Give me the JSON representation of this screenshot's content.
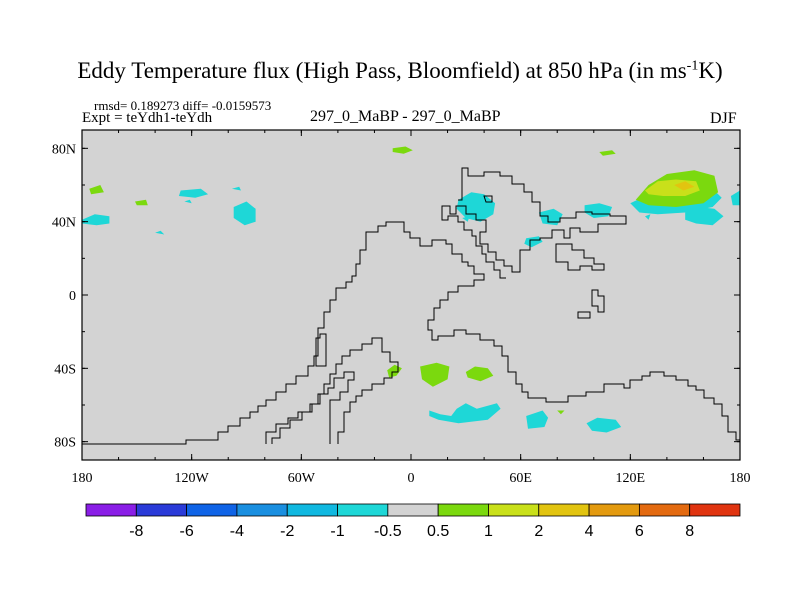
{
  "title": {
    "main": "Eddy Temperature flux (High Pass, Bloomfield) at 850 hPa (in ms",
    "sup": "-1",
    "end": "K)"
  },
  "stats": "rmsd= 0.189273 diff= -0.0159573",
  "expt": "Expt = teYdh1-teYdh",
  "experiment_name": "297_0_MaBP - 297_0_MaBP",
  "season": "DJF",
  "colors": {
    "background_band": "#d3d3d3",
    "coast": "#000000"
  },
  "chart_data": {
    "type": "heatmap",
    "title": "Eddy Temperature flux (High Pass, Bloomfield) at 850 hPa (in ms-1K)",
    "x_range": [
      -180,
      180
    ],
    "y_range": [
      -90,
      90
    ],
    "x_ticks": [
      {
        "value": -180,
        "label": "180"
      },
      {
        "value": -120,
        "label": "120W"
      },
      {
        "value": -60,
        "label": "60W"
      },
      {
        "value": 0,
        "label": "0"
      },
      {
        "value": 60,
        "label": "60E"
      },
      {
        "value": 120,
        "label": "120E"
      },
      {
        "value": 180,
        "label": "180"
      }
    ],
    "y_ticks": [
      {
        "value": 80,
        "label": "80N"
      },
      {
        "value": 40,
        "label": "40N"
      },
      {
        "value": 0,
        "label": "0"
      },
      {
        "value": -40,
        "label": "40S"
      },
      {
        "value": -80,
        "label": "80S"
      }
    ],
    "colorbar": {
      "labels": [
        "-8",
        "-6",
        "-4",
        "-2",
        "-1",
        "-0.5",
        "0.5",
        "1",
        "2",
        "4",
        "6",
        "8"
      ],
      "colors": [
        "#8a1ee6",
        "#2a3bd8",
        "#0f63e6",
        "#1a8fe0",
        "#10b8e0",
        "#1ed7d7",
        "#d3d3d3",
        "#7bd90e",
        "#c9e01a",
        "#e2c410",
        "#e39a0f",
        "#e36a10",
        "#e03410"
      ]
    },
    "features": [
      {
        "level": "-1",
        "color": "#1ed7d7",
        "points": [
          [
            -180,
            41
          ],
          [
            -173,
            44
          ],
          [
            -165,
            43
          ],
          [
            -165,
            39
          ],
          [
            -172,
            38
          ],
          [
            -180,
            39
          ]
        ]
      },
      {
        "level": "-1",
        "color": "#1ed7d7",
        "points": [
          [
            -140,
            34
          ],
          [
            -137,
            35
          ],
          [
            -135,
            33
          ]
        ]
      },
      {
        "level": "-1",
        "color": "#1ed7d7",
        "points": [
          [
            -97,
            48
          ],
          [
            -90,
            51
          ],
          [
            -85,
            47
          ],
          [
            -85,
            40
          ],
          [
            -91,
            38
          ],
          [
            -97,
            42
          ]
        ]
      },
      {
        "level": "0.5",
        "color": "#7bd90e",
        "points": [
          [
            -176,
            58
          ],
          [
            -170,
            60
          ],
          [
            -168,
            56
          ],
          [
            -175,
            55
          ]
        ]
      },
      {
        "level": "0.5",
        "color": "#7bd90e",
        "points": [
          [
            -151,
            51
          ],
          [
            -145,
            52
          ],
          [
            -144,
            49
          ],
          [
            -150,
            49
          ]
        ]
      },
      {
        "level": "-1",
        "color": "#1ed7d7",
        "points": [
          [
            -126,
            57
          ],
          [
            -115,
            58
          ],
          [
            -111,
            55
          ],
          [
            -118,
            53
          ],
          [
            -127,
            54
          ]
        ]
      },
      {
        "level": "-1",
        "color": "#1ed7d7",
        "points": [
          [
            -124,
            51
          ],
          [
            -121,
            52
          ],
          [
            -120,
            50
          ]
        ]
      },
      {
        "level": "-1",
        "color": "#1ed7d7",
        "points": [
          [
            -98,
            58
          ],
          [
            -94,
            59
          ],
          [
            -93,
            57
          ]
        ]
      },
      {
        "level": "0.5",
        "color": "#7bd90e",
        "points": [
          [
            -10,
            80
          ],
          [
            -3,
            81
          ],
          [
            1,
            79
          ],
          [
            -4,
            77
          ],
          [
            -10,
            78
          ]
        ]
      },
      {
        "level": "0.5",
        "color": "#7bd90e",
        "points": [
          [
            103,
            78
          ],
          [
            110,
            79
          ],
          [
            112,
            77
          ],
          [
            105,
            76
          ]
        ]
      },
      {
        "level": "-1",
        "color": "#1ed7d7",
        "points": [
          [
            26,
            52
          ],
          [
            33,
            56
          ],
          [
            40,
            55
          ],
          [
            46,
            50
          ],
          [
            45,
            44
          ],
          [
            38,
            40
          ],
          [
            30,
            42
          ],
          [
            25,
            47
          ]
        ]
      },
      {
        "level": "-1",
        "color": "#1ed7d7",
        "points": [
          [
            28,
            42
          ],
          [
            32,
            43
          ],
          [
            31,
            40
          ]
        ]
      },
      {
        "level": "-1",
        "color": "#1ed7d7",
        "points": [
          [
            70,
            45
          ],
          [
            78,
            47
          ],
          [
            83,
            44
          ],
          [
            80,
            38
          ],
          [
            72,
            39
          ]
        ]
      },
      {
        "level": "-1",
        "color": "#1ed7d7",
        "points": [
          [
            63,
            31
          ],
          [
            70,
            32
          ],
          [
            72,
            29
          ],
          [
            66,
            26
          ],
          [
            62,
            28
          ]
        ]
      },
      {
        "level": "-1",
        "color": "#1ed7d7",
        "points": [
          [
            95,
            49
          ],
          [
            103,
            50
          ],
          [
            110,
            48
          ],
          [
            108,
            43
          ],
          [
            100,
            42
          ],
          [
            95,
            45
          ]
        ]
      },
      {
        "level": "-1",
        "color": "#1ed7d7",
        "points": [
          [
            120,
            50
          ],
          [
            130,
            55
          ],
          [
            140,
            56
          ],
          [
            150,
            56
          ],
          [
            165,
            58
          ],
          [
            170,
            53
          ],
          [
            165,
            48
          ],
          [
            150,
            45
          ],
          [
            135,
            44
          ],
          [
            125,
            45
          ]
        ]
      },
      {
        "level": "0.5",
        "color": "#7bd90e",
        "points": [
          [
            123,
            52
          ],
          [
            130,
            60
          ],
          [
            140,
            66
          ],
          [
            155,
            68
          ],
          [
            166,
            65
          ],
          [
            168,
            56
          ],
          [
            160,
            50
          ],
          [
            145,
            48
          ],
          [
            130,
            49
          ]
        ]
      },
      {
        "level": "1",
        "color": "#c9e01a",
        "points": [
          [
            128,
            57
          ],
          [
            135,
            62
          ],
          [
            145,
            63
          ],
          [
            156,
            62
          ],
          [
            158,
            57
          ],
          [
            150,
            54
          ],
          [
            138,
            54
          ],
          [
            130,
            55
          ]
        ]
      },
      {
        "level": "2",
        "color": "#e2c410",
        "points": [
          [
            144,
            60
          ],
          [
            150,
            62
          ],
          [
            155,
            59
          ],
          [
            149,
            57
          ]
        ]
      },
      {
        "level": "-1",
        "color": "#1ed7d7",
        "points": [
          [
            150,
            45
          ],
          [
            157,
            48
          ],
          [
            166,
            47
          ],
          [
            171,
            43
          ],
          [
            165,
            38
          ],
          [
            156,
            39
          ],
          [
            150,
            41
          ]
        ]
      },
      {
        "level": "-1",
        "color": "#1ed7d7",
        "points": [
          [
            175,
            54
          ],
          [
            180,
            57
          ],
          [
            180,
            49
          ],
          [
            176,
            49
          ]
        ]
      },
      {
        "level": "-1",
        "color": "#1ed7d7",
        "points": [
          [
            128,
            43
          ],
          [
            131,
            44
          ],
          [
            130,
            41
          ]
        ]
      },
      {
        "level": "0.5",
        "color": "#7bd90e",
        "points": [
          [
            5,
            -39
          ],
          [
            14,
            -37
          ],
          [
            21,
            -39
          ],
          [
            20,
            -46
          ],
          [
            12,
            -50
          ],
          [
            6,
            -46
          ]
        ]
      },
      {
        "level": "0.5",
        "color": "#7bd90e",
        "points": [
          [
            -13,
            -41
          ],
          [
            -9,
            -38
          ],
          [
            -5,
            -40
          ],
          [
            -8,
            -44
          ],
          [
            -12,
            -45
          ]
        ]
      },
      {
        "level": "0.5",
        "color": "#7bd90e",
        "points": [
          [
            30,
            -42
          ],
          [
            35,
            -39
          ],
          [
            42,
            -40
          ],
          [
            45,
            -44
          ],
          [
            38,
            -47
          ],
          [
            31,
            -45
          ]
        ]
      },
      {
        "level": "-1",
        "color": "#1ed7d7",
        "points": [
          [
            10,
            -63
          ],
          [
            16,
            -65
          ],
          [
            22,
            -66
          ],
          [
            25,
            -62
          ],
          [
            30,
            -59
          ],
          [
            36,
            -62
          ],
          [
            47,
            -59
          ],
          [
            49,
            -62
          ],
          [
            42,
            -68
          ],
          [
            34,
            -69
          ],
          [
            26,
            -70
          ],
          [
            15,
            -68
          ],
          [
            10,
            -66
          ]
        ]
      },
      {
        "level": "-1",
        "color": "#1ed7d7",
        "points": [
          [
            63,
            -66
          ],
          [
            72,
            -63
          ],
          [
            75,
            -67
          ],
          [
            73,
            -72
          ],
          [
            64,
            -73
          ]
        ]
      },
      {
        "level": "0.5",
        "color": "#7bd90e",
        "points": [
          [
            80,
            -63
          ],
          [
            84,
            -63
          ],
          [
            82,
            -65
          ]
        ]
      },
      {
        "level": "-1",
        "color": "#1ed7d7",
        "points": [
          [
            96,
            -70
          ],
          [
            102,
            -67
          ],
          [
            112,
            -68
          ],
          [
            115,
            -72
          ],
          [
            107,
            -75
          ],
          [
            99,
            -74
          ]
        ]
      }
    ]
  }
}
